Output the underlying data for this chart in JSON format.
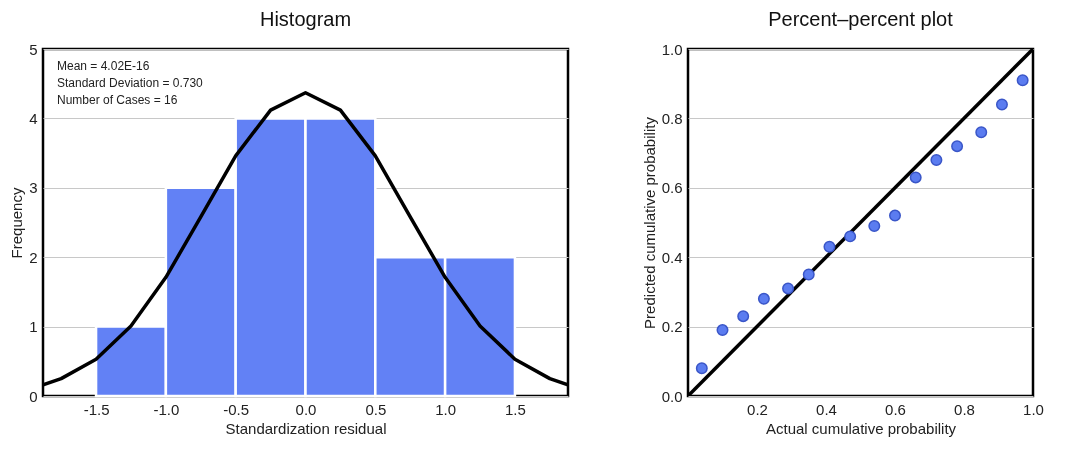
{
  "chart_data": [
    {
      "type": "histogram",
      "title": "Histogram",
      "xlabel": "Standardization residual",
      "ylabel": "Frequency",
      "bins": [
        -1.5,
        -1.0,
        -0.5,
        0.0,
        0.5,
        1.0,
        1.5
      ],
      "values": [
        1,
        3,
        4,
        4,
        2,
        2
      ],
      "color": "#6281f5",
      "series": [
        {
          "type": "line",
          "color": "#000000",
          "x": [
            -1.88,
            -1.75,
            -1.5,
            -1.25,
            -1.0,
            -0.75,
            -0.5,
            -0.25,
            0.0,
            0.25,
            0.5,
            0.75,
            1.0,
            1.25,
            1.5,
            1.75,
            1.88
          ],
          "values": [
            0.16,
            0.25,
            0.53,
            1.01,
            1.71,
            2.58,
            3.46,
            4.12,
            4.37,
            4.12,
            3.46,
            2.58,
            1.71,
            1.01,
            0.53,
            0.25,
            0.16
          ]
        }
      ],
      "annotations": [
        "Mean = 4.02E-16",
        "Standard Deviation = 0.730",
        "Number of Cases = 16"
      ],
      "xlim": [
        -1.88,
        1.88
      ],
      "xticks": [
        -1.5,
        {
          "value": -1.0,
          "label": "-1.0"
        },
        -0.5,
        {
          "value": 0.0,
          "label": "0.0"
        },
        0.5,
        {
          "value": 1.0,
          "label": "1.0"
        },
        1.5
      ],
      "ylim": [
        0,
        5
      ],
      "yticks": [
        0,
        1,
        2,
        3,
        4,
        5
      ],
      "grid": "y"
    },
    {
      "type": "scatter",
      "title": "Percent–percent plot",
      "xlabel": "Actual cumulative probability",
      "ylabel": "Predicted cumulative probability",
      "series": [
        {
          "type": "scatter",
          "marker": "circle",
          "color": "#5b7cf0",
          "x": [
            0.04,
            0.1,
            0.16,
            0.22,
            0.29,
            0.35,
            0.41,
            0.47,
            0.54,
            0.6,
            0.66,
            0.72,
            0.78,
            0.85,
            0.91,
            0.97
          ],
          "values": [
            0.08,
            0.19,
            0.23,
            0.28,
            0.31,
            0.35,
            0.43,
            0.46,
            0.49,
            0.52,
            0.63,
            0.68,
            0.72,
            0.76,
            0.84,
            0.91
          ]
        },
        {
          "type": "line",
          "color": "#000000",
          "x": [
            0,
            1
          ],
          "values": [
            0,
            1
          ]
        }
      ],
      "xlim": [
        0,
        1
      ],
      "xticks": [
        0.2,
        0.4,
        0.6,
        0.8,
        {
          "value": 1.0,
          "label": "1.0"
        }
      ],
      "ylim": [
        0,
        1
      ],
      "yticks": [
        {
          "value": 0.0,
          "label": "0.0"
        },
        0.2,
        0.4,
        0.6,
        0.8,
        {
          "value": 1.0,
          "label": "1.0"
        }
      ],
      "grid": "y"
    }
  ]
}
